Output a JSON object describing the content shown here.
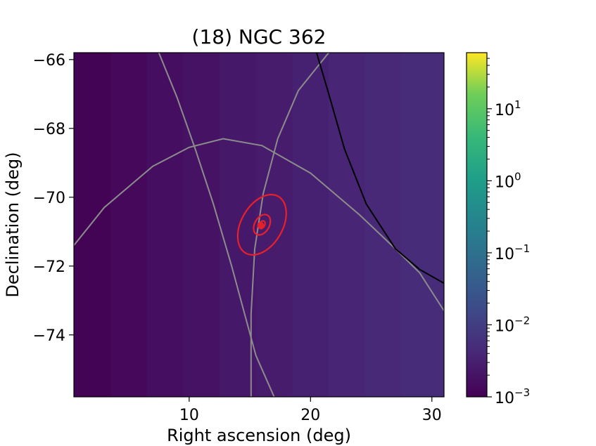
{
  "chart_data": {
    "type": "heatmap",
    "title": "(18) NGC 362",
    "xlabel": "Right ascension (deg)",
    "ylabel": "Declination (deg)",
    "xlim": [
      0.5,
      31.0
    ],
    "ylim": [
      -75.8,
      -65.8
    ],
    "y_inverted": true,
    "x_ticks": [
      10,
      20,
      30
    ],
    "y_ticks": [
      -66,
      -68,
      -70,
      -72,
      -74
    ],
    "x_tick_labels": [
      "10",
      "20",
      "30"
    ],
    "y_tick_labels": [
      "−66",
      "−68",
      "−70",
      "−72",
      "−74"
    ],
    "colormap": "viridis",
    "colorbar": {
      "scale": "log",
      "vmin": 0.001,
      "vmax": 60,
      "ticks": [
        0.001,
        0.01,
        0.1,
        1,
        10
      ],
      "tick_labels": [
        {
          "base": "10",
          "exp": "−3"
        },
        {
          "base": "10",
          "exp": "−2"
        },
        {
          "base": "10",
          "exp": "−1"
        },
        {
          "base": "10",
          "exp": "0"
        },
        {
          "base": "10",
          "exp": "1"
        }
      ]
    },
    "heatmap_columns": [
      {
        "ra": [
          0.5,
          3.5
        ],
        "value": 0.0011
      },
      {
        "ra": [
          3.5,
          6.5
        ],
        "value": 0.0013
      },
      {
        "ra": [
          6.5,
          9.5
        ],
        "value": 0.0016
      },
      {
        "ra": [
          9.5,
          12.5
        ],
        "value": 0.0019
      },
      {
        "ra": [
          12.5,
          15.5
        ],
        "value": 0.0023
      },
      {
        "ra": [
          15.5,
          18.5
        ],
        "value": 0.0027
      },
      {
        "ra": [
          18.5,
          21.5
        ],
        "value": 0.0032
      },
      {
        "ra": [
          21.5,
          24.5
        ],
        "value": 0.0037
      },
      {
        "ra": [
          24.5,
          27.5
        ],
        "value": 0.0043
      },
      {
        "ra": [
          27.5,
          31.0
        ],
        "value": 0.005
      }
    ],
    "red_contours": [
      {
        "ra": 16.0,
        "dec": -70.8,
        "semi_major_ra": 3.4,
        "semi_minor_dec": 0.95,
        "rotation_deg": 30
      },
      {
        "ra": 16.0,
        "dec": -70.8,
        "semi_major_ra": 1.2,
        "semi_minor_dec": 0.32,
        "rotation_deg": 30
      },
      {
        "ra": 16.0,
        "dec": -70.8,
        "semi_major_ra": 0.45,
        "semi_minor_dec": 0.12,
        "rotation_deg": 30
      }
    ],
    "red_marker": {
      "ra": 15.9,
      "dec": -70.82
    },
    "gray_curves": [
      {
        "points": [
          [
            0.5,
            -71.4
          ],
          [
            3,
            -70.3
          ],
          [
            7,
            -69.1
          ],
          [
            10,
            -68.55
          ],
          [
            12.8,
            -68.3
          ],
          [
            16,
            -68.5
          ],
          [
            20,
            -69.3
          ],
          [
            24,
            -70.5
          ],
          [
            27,
            -71.5
          ],
          [
            29,
            -72.2
          ],
          [
            31,
            -73.3
          ]
        ]
      },
      {
        "points": [
          [
            7.5,
            -65.8
          ],
          [
            9,
            -67.1
          ],
          [
            10.5,
            -68.6
          ],
          [
            12,
            -70.2
          ],
          [
            13.5,
            -72.0
          ],
          [
            14.5,
            -73.3
          ],
          [
            15.5,
            -74.6
          ],
          [
            17,
            -75.8
          ]
        ]
      },
      {
        "points": [
          [
            21.5,
            -65.8
          ],
          [
            19,
            -66.9
          ],
          [
            17.3,
            -68.3
          ],
          [
            16.1,
            -69.9
          ],
          [
            15.4,
            -71.5
          ],
          [
            15.1,
            -73.4
          ],
          [
            15.1,
            -75.8
          ]
        ]
      }
    ],
    "black_curve": {
      "points": [
        [
          20.5,
          -65.8
        ],
        [
          21.5,
          -67.0
        ],
        [
          22.8,
          -68.6
        ],
        [
          24.6,
          -70.2
        ],
        [
          27,
          -71.5
        ],
        [
          29,
          -72.1
        ],
        [
          31,
          -72.5
        ]
      ]
    }
  }
}
